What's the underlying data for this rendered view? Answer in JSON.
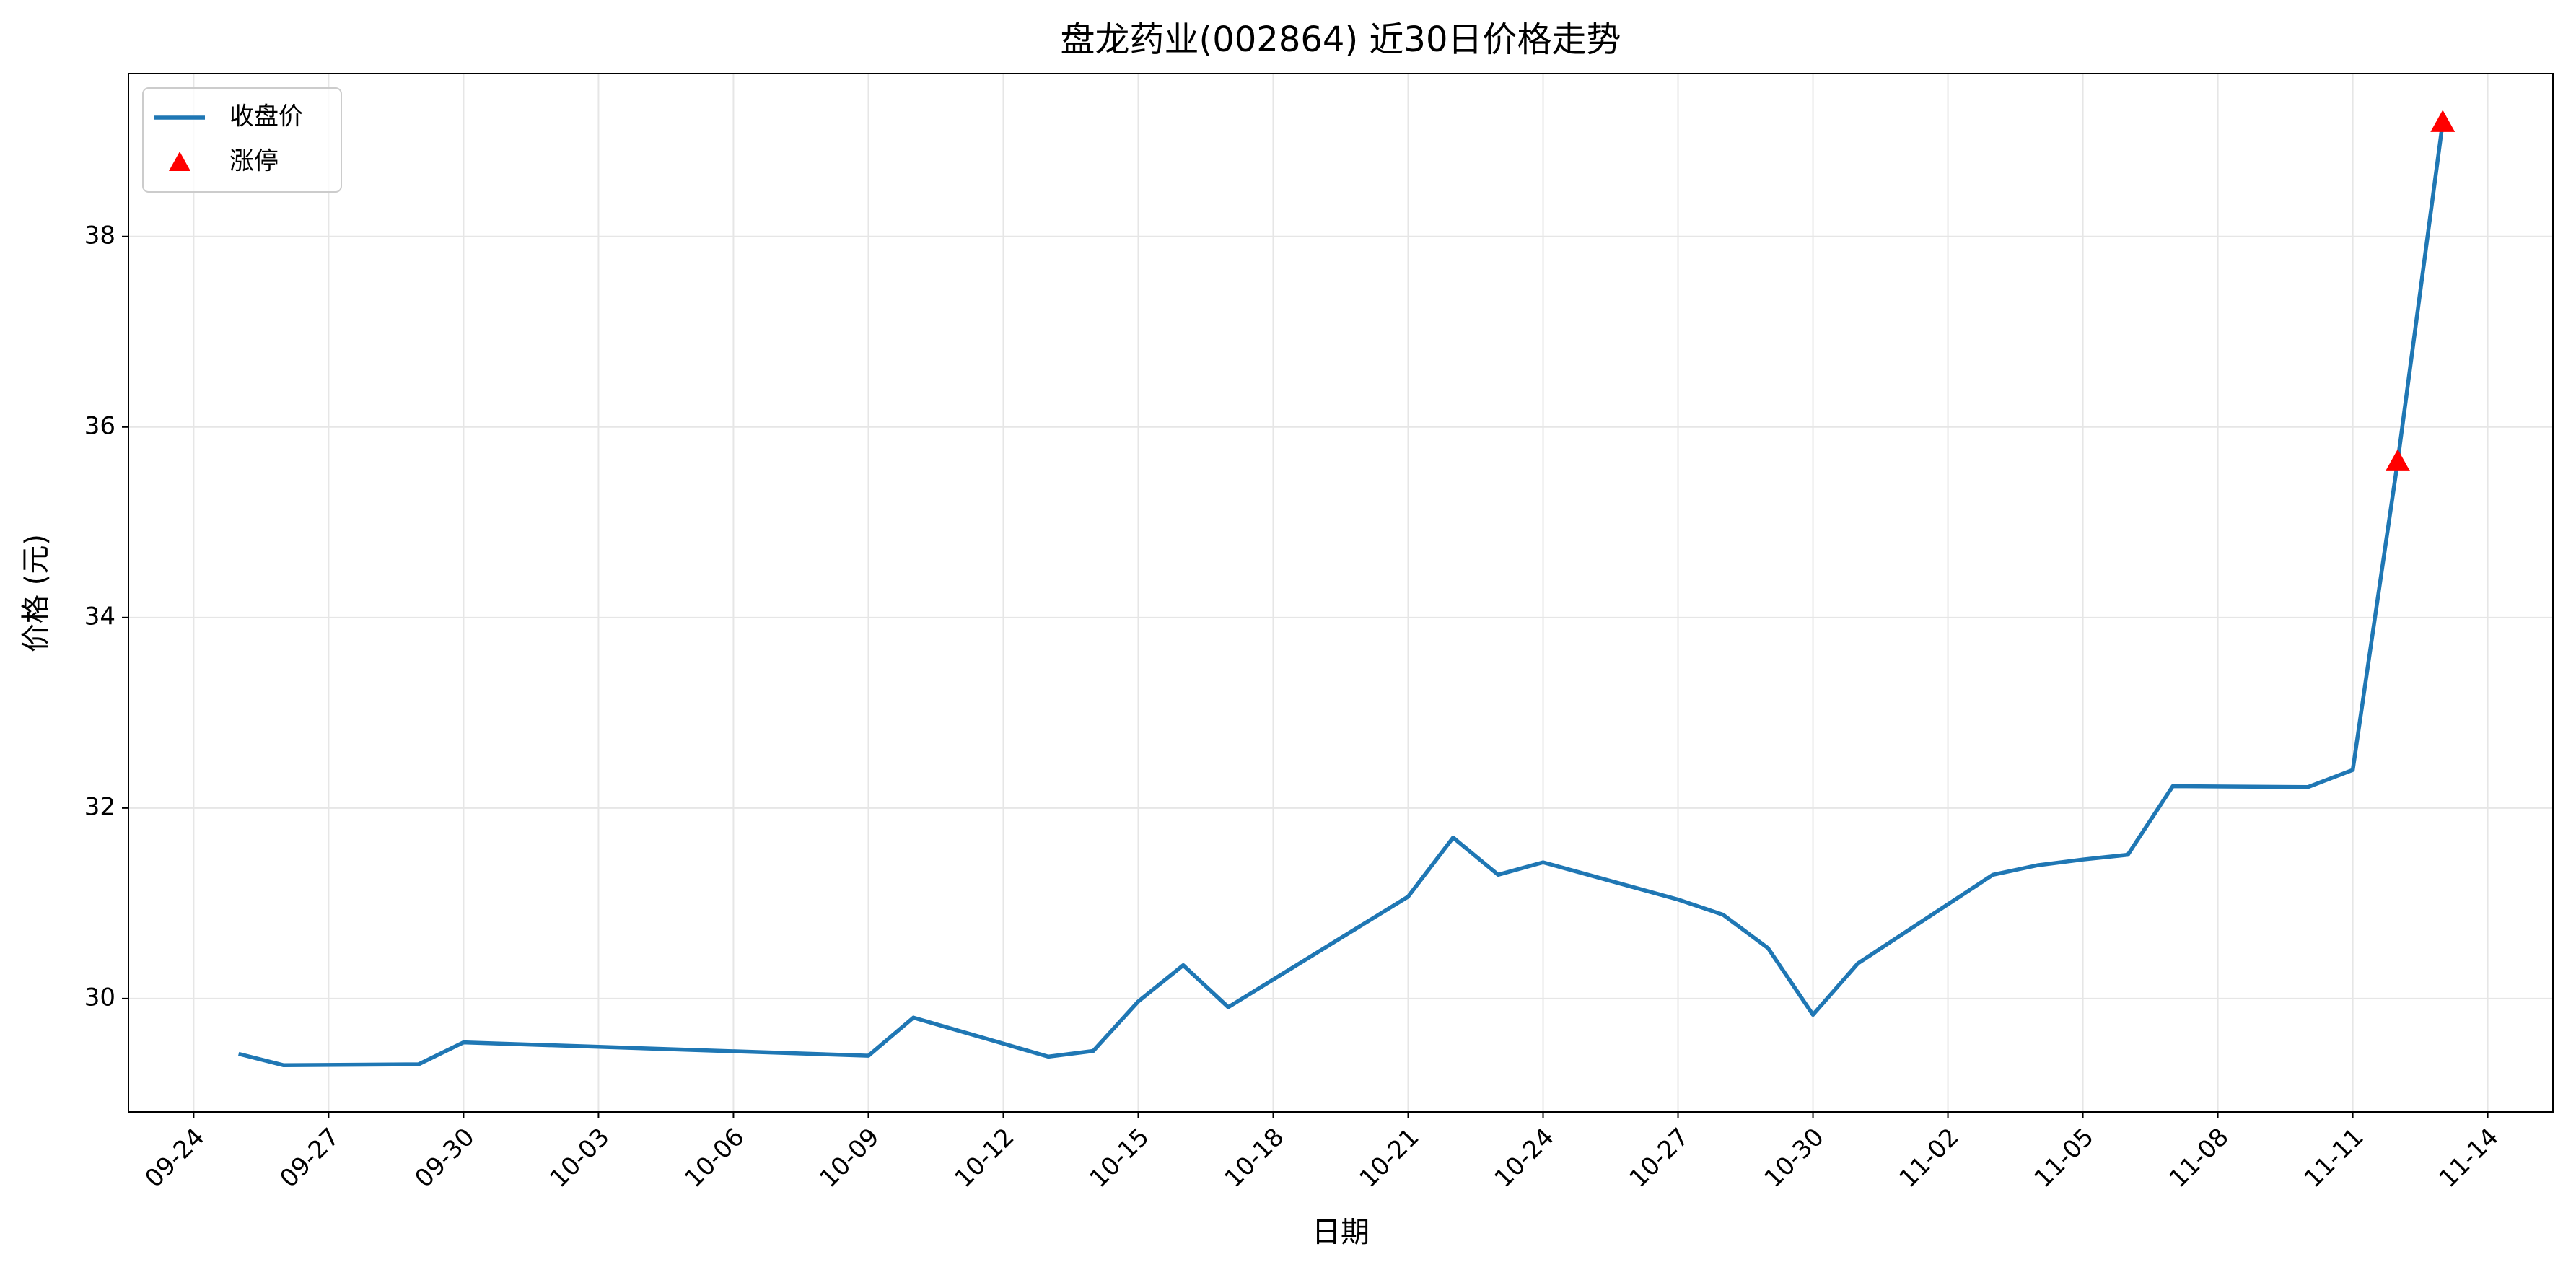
{
  "chart_data": {
    "type": "line",
    "title": "盘龙药业(002864) 近30日价格走势",
    "x_label": "日期",
    "y_label": "价格 (元)",
    "x": [
      "09-25",
      "09-26",
      "09-29",
      "09-30",
      "10-09",
      "10-10",
      "10-13",
      "10-14",
      "10-15",
      "10-16",
      "10-17",
      "10-20",
      "10-21",
      "10-22",
      "10-23",
      "10-24",
      "10-27",
      "10-28",
      "10-29",
      "10-30",
      "10-31",
      "11-03",
      "11-04",
      "11-05",
      "11-06",
      "11-07",
      "11-10",
      "11-11",
      "11-12",
      "11-13"
    ],
    "series": [
      {
        "name": "收盘价",
        "color": "#1f77b4",
        "values": [
          29.42,
          29.3,
          29.31,
          29.54,
          29.4,
          29.8,
          29.39,
          29.45,
          29.97,
          30.35,
          29.91,
          30.78,
          31.07,
          31.69,
          31.3,
          31.43,
          31.04,
          30.88,
          30.53,
          29.83,
          30.37,
          31.3,
          31.4,
          31.46,
          31.51,
          32.23,
          32.22,
          32.4,
          35.64,
          39.2
        ]
      },
      {
        "name": "涨停",
        "type": "scatter",
        "color": "#ff0000",
        "x": [
          "11-12",
          "11-13"
        ],
        "values": [
          35.64,
          39.2
        ]
      }
    ],
    "xticks": [
      "09-24",
      "09-27",
      "09-30",
      "10-03",
      "10-06",
      "10-09",
      "10-12",
      "10-15",
      "10-18",
      "10-21",
      "10-24",
      "10-27",
      "10-30",
      "11-02",
      "11-05",
      "11-08",
      "11-11",
      "11-14"
    ],
    "ylim": [
      28.81,
      39.71
    ],
    "yticks": [
      30,
      32,
      34,
      36,
      38
    ],
    "grid": true,
    "legend": "upper left"
  }
}
